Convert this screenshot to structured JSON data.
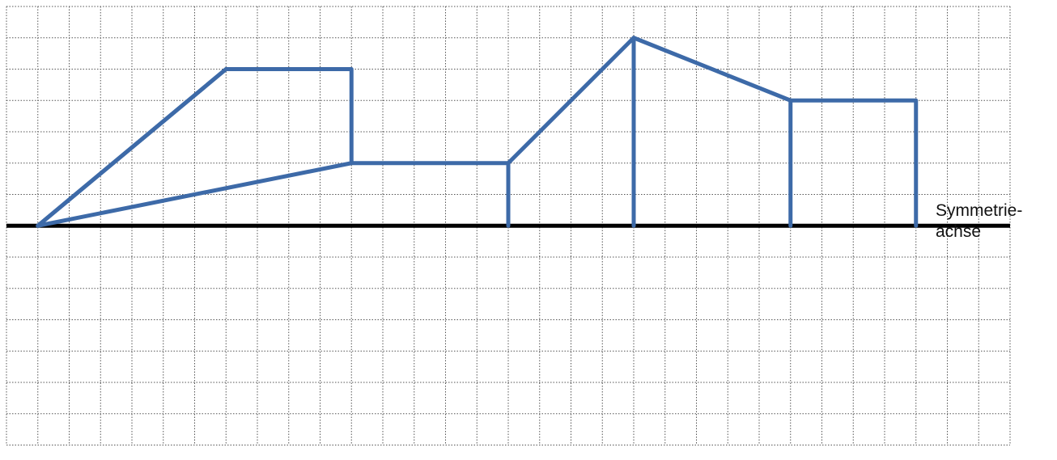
{
  "grid": {
    "columns": 32,
    "rows": 14,
    "color": "#555555"
  },
  "axis": {
    "label_line1": "Symmetrie-",
    "label_line2": "achse",
    "color": "#000000",
    "row": 7
  },
  "shape": {
    "color": "#3d6aa8",
    "polylines": [
      [
        [
          1,
          7
        ],
        [
          7,
          2
        ],
        [
          11,
          2
        ],
        [
          11,
          5
        ],
        [
          1,
          7
        ]
      ],
      [
        [
          1,
          7
        ],
        [
          7,
          2
        ]
      ],
      [
        [
          11,
          5
        ],
        [
          16,
          5
        ],
        [
          16,
          7
        ]
      ],
      [
        [
          16,
          5
        ],
        [
          20,
          1
        ],
        [
          20,
          7
        ]
      ],
      [
        [
          20,
          1
        ],
        [
          25,
          3
        ],
        [
          25,
          7
        ]
      ],
      [
        [
          25,
          3
        ],
        [
          29,
          3
        ],
        [
          29,
          7
        ]
      ]
    ]
  }
}
